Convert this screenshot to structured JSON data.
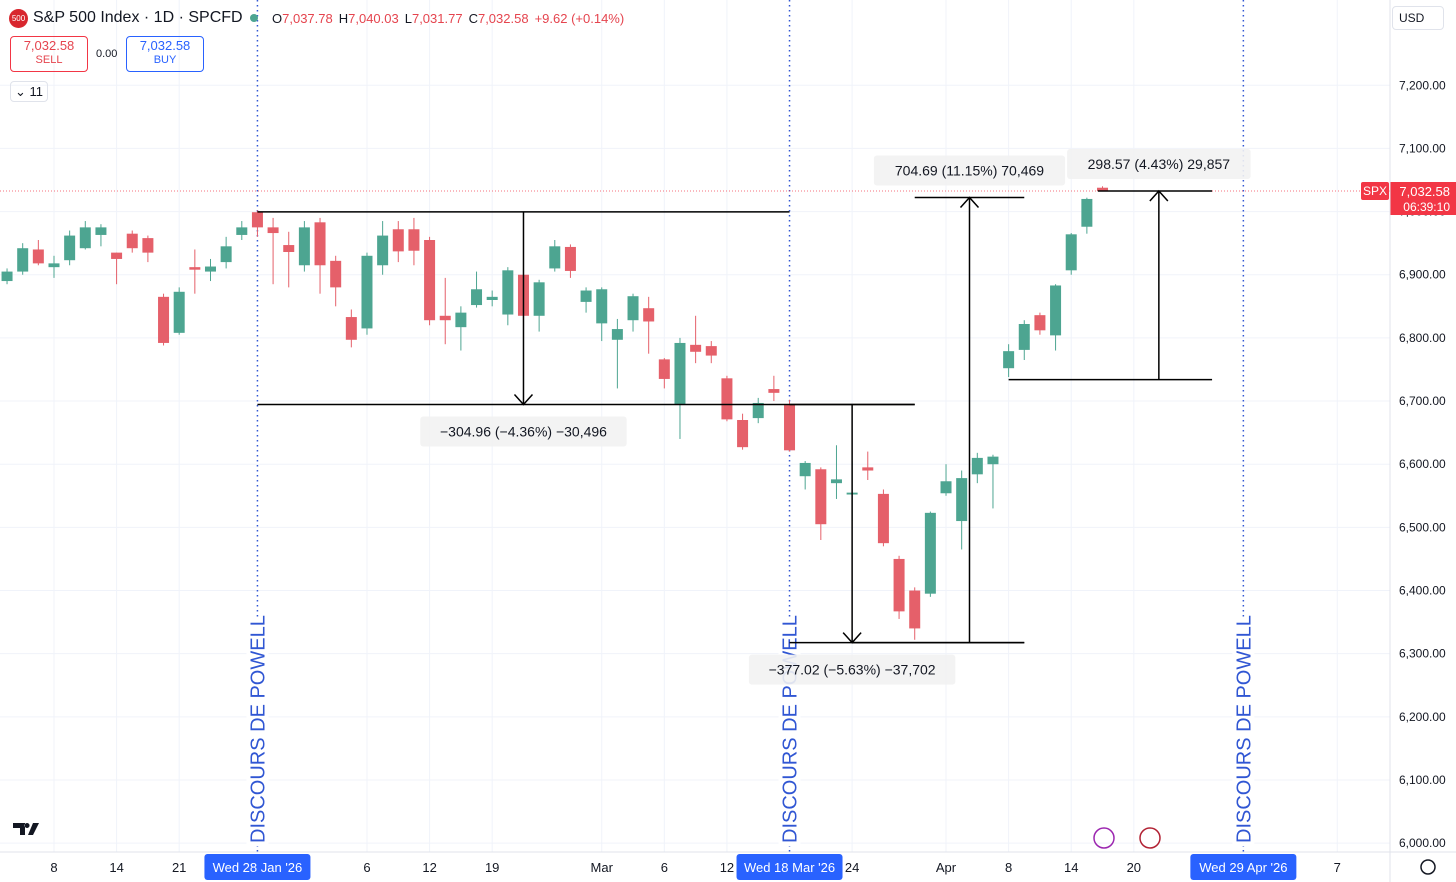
{
  "header": {
    "logo": "500",
    "title": "S&P 500 Index · 1D · SPCFD",
    "ohlc": [
      {
        "label": "O",
        "value": "7,037.78"
      },
      {
        "label": "H",
        "value": "7,040.03"
      },
      {
        "label": "L",
        "value": "7,031.77"
      },
      {
        "label": "C",
        "value": "7,032.58"
      }
    ],
    "change": "+9.62 (+0.14%)",
    "sell": {
      "price": "7,032.58",
      "label": "SELL"
    },
    "spread": "0.00",
    "buy": {
      "price": "7,032.58",
      "label": "BUY"
    },
    "indicators": "11",
    "currency": "USD"
  },
  "chart_data": {
    "type": "candlestick",
    "x": [
      0,
      1,
      2,
      3,
      4,
      5,
      6,
      7,
      8,
      9,
      10,
      11,
      12,
      13,
      14,
      15,
      16,
      17,
      18,
      19,
      20,
      21,
      22,
      23,
      24,
      25,
      26,
      27,
      28,
      29,
      30,
      31,
      32,
      33,
      34,
      35,
      36,
      37,
      38,
      39,
      40,
      41,
      42,
      43,
      44,
      45,
      46,
      47,
      48,
      49,
      50,
      51,
      52,
      53,
      54,
      55,
      56,
      57,
      58,
      59,
      60,
      61,
      62,
      63,
      64,
      65,
      66,
      67,
      68,
      69,
      70
    ],
    "open": [
      6890,
      6905,
      6940,
      6912,
      6923,
      6942,
      6963,
      6935,
      6965,
      6958,
      6865,
      6808,
      6912,
      6905,
      6920,
      6963,
      6999,
      6975,
      6947,
      6915,
      6983,
      6922,
      6833,
      6815,
      6915,
      6972,
      6972,
      6955,
      6835,
      6817,
      6852,
      6860,
      6837,
      6900,
      6835,
      6910,
      6944,
      6857,
      6823,
      6797,
      6828,
      6847,
      6766,
      6695,
      6789,
      6787,
      6736,
      6670,
      6673,
      6719,
      6695,
      6581,
      6592,
      6570,
      6552,
      6595,
      6553,
      6450,
      6400,
      6395,
      6554,
      6510,
      6584,
      6600,
      6752,
      6781,
      6836,
      6804,
      6907,
      6976,
      7037.78
    ],
    "high": [
      6910,
      6950,
      6955,
      6930,
      6970,
      6985,
      6980,
      6935,
      6970,
      6962,
      6870,
      6880,
      6940,
      6925,
      6960,
      6985,
      7002,
      6990,
      6968,
      6985,
      6990,
      6930,
      6845,
      6935,
      6985,
      6985,
      6990,
      6960,
      6895,
      6850,
      6905,
      6875,
      6912,
      6910,
      6892,
      6955,
      6948,
      6880,
      6880,
      6830,
      6870,
      6865,
      6768,
      6800,
      6835,
      6795,
      6740,
      6680,
      6705,
      6740,
      6702,
      6605,
      6595,
      6630,
      6605,
      6620,
      6560,
      6455,
      6405,
      6525,
      6600,
      6590,
      6618,
      6615,
      6790,
      6828,
      6840,
      6885,
      6966,
      7022,
      7040.03
    ],
    "low": [
      6885,
      6900,
      6915,
      6895,
      6915,
      6940,
      6945,
      6885,
      6935,
      6920,
      6788,
      6805,
      6870,
      6890,
      6910,
      6955,
      6960,
      6885,
      6880,
      6905,
      6870,
      6850,
      6785,
      6805,
      6900,
      6920,
      6915,
      6820,
      6790,
      6780,
      6848,
      6850,
      6820,
      6825,
      6810,
      6905,
      6895,
      6840,
      6795,
      6720,
      6810,
      6775,
      6720,
      6640,
      6760,
      6760,
      6668,
      6623,
      6665,
      6700,
      6620,
      6560,
      6480,
      6545,
      6510,
      6575,
      6470,
      6355,
      6322,
      6390,
      6550,
      6465,
      6570,
      6530,
      6738,
      6765,
      6805,
      6780,
      6900,
      6965,
      7031.77
    ],
    "close": [
      6905,
      6942,
      6918,
      6918,
      6962,
      6975,
      6975,
      6925,
      6942,
      6935,
      6792,
      6873,
      6908,
      6913,
      6945,
      6975,
      6975,
      6966,
      6936,
      6975,
      6915,
      6880,
      6797,
      6930,
      6962,
      6937,
      6938,
      6828,
      6828,
      6840,
      6877,
      6865,
      6907,
      6835,
      6888,
      6945,
      6906,
      6875,
      6877,
      6814,
      6866,
      6826,
      6735,
      6792,
      6778,
      6772,
      6671,
      6627,
      6697,
      6713,
      6622,
      6602,
      6505,
      6576,
      6555,
      6590,
      6475,
      6367,
      6340,
      6523,
      6573,
      6578,
      6610,
      6612,
      6779,
      6822,
      6812,
      6883,
      6964,
      7020,
      7032.58
    ],
    "up_color": "#4da591",
    "down_color": "#e5606a",
    "xlim": [
      -0.45,
      88.37
    ],
    "xticks": [
      {
        "value": 3,
        "label": "8"
      },
      {
        "value": 7,
        "label": "14"
      },
      {
        "value": 11,
        "label": "21"
      },
      {
        "value": 23,
        "label": "6"
      },
      {
        "value": 27,
        "label": "12"
      },
      {
        "value": 31,
        "label": "19"
      },
      {
        "value": 38,
        "label": "Mar"
      },
      {
        "value": 42,
        "label": "6"
      },
      {
        "value": 46,
        "label": "12"
      },
      {
        "value": 54,
        "label": "24"
      },
      {
        "value": 60,
        "label": "Apr"
      },
      {
        "value": 64,
        "label": "8"
      },
      {
        "value": 68,
        "label": "14"
      },
      {
        "value": 72,
        "label": "20"
      },
      {
        "value": 85,
        "label": "7"
      }
    ],
    "ylim": [
      5986,
      7335
    ],
    "yticks": [
      {
        "value": 6000,
        "label": "6,000.00"
      },
      {
        "value": 6100,
        "label": "6,100.00"
      },
      {
        "value": 6200,
        "label": "6,200.00"
      },
      {
        "value": 6300,
        "label": "6,300.00"
      },
      {
        "value": 6400,
        "label": "6,400.00"
      },
      {
        "value": 6500,
        "label": "6,500.00"
      },
      {
        "value": 6600,
        "label": "6,600.00"
      },
      {
        "value": 6700,
        "label": "6,700.00"
      },
      {
        "value": 6800,
        "label": "6,800.00"
      },
      {
        "value": 6900,
        "label": "6,900.00"
      },
      {
        "value": 7000,
        "label": "7,000.00"
      },
      {
        "value": 7100,
        "label": "7,100.00"
      },
      {
        "value": 7200,
        "label": "7,200.00"
      }
    ],
    "grid": true,
    "last_price": {
      "value": 7032.58,
      "label": "7,032.58",
      "symbol": "SPX",
      "countdown": "06:39:10",
      "color": "#f23645"
    },
    "events": [
      {
        "x": 16,
        "label": "DISCOURS DE POWELL",
        "date": "Wed 28 Jan '26"
      },
      {
        "x": 50,
        "label": "DISCOURS DE POWELL",
        "date": "Wed 18 Mar '26"
      },
      {
        "x": 79,
        "label": "DISCOURS DE POWELL",
        "date": "Wed 29 Apr '26"
      }
    ],
    "event_color": "#3056d3",
    "measures": [
      {
        "label": "−304.96 (−4.36%) −30,496",
        "from": 6999.6,
        "to": 6694.6,
        "from_x": [
          16,
          50
        ],
        "to_x": [
          16,
          58
        ],
        "arrow_x": 33
      },
      {
        "label": "−377.02 (−5.63%) −37,702",
        "from": 6694.6,
        "to": 6317.6,
        "from_x": [
          50,
          58
        ],
        "to_x": [
          50,
          65
        ],
        "arrow_x": 54
      },
      {
        "label": "704.69 (11.15%) 70,469",
        "from": 6317.6,
        "to": 7022.3,
        "from_x": [
          54,
          65
        ],
        "to_x": [
          58,
          65
        ],
        "arrow_x": 61.5
      },
      {
        "label": "298.57 (4.43%) 29,857",
        "from": 6734.0,
        "to": 7032.6,
        "from_x": [
          64,
          77
        ],
        "to_x": [
          69.7,
          77
        ],
        "arrow_x": 73.6
      }
    ]
  }
}
